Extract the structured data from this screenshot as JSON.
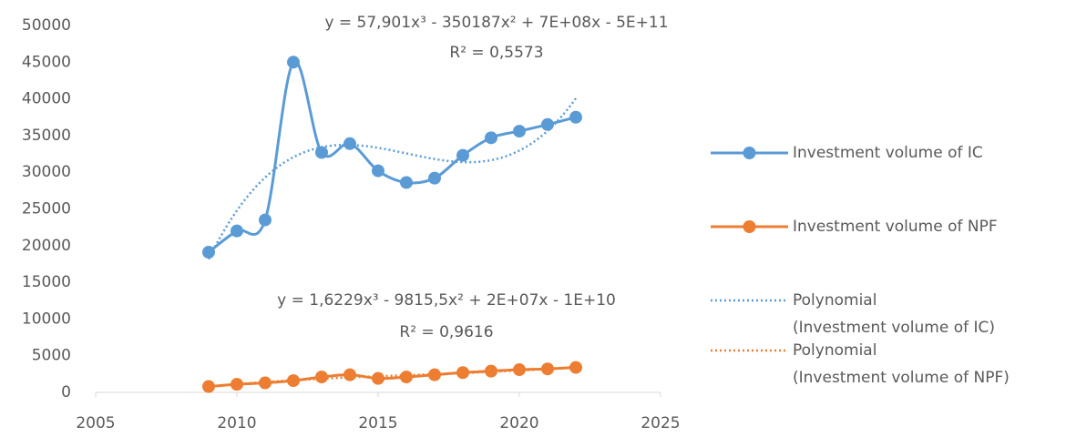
{
  "chart_data": {
    "type": "line",
    "x": [
      2009,
      2010,
      2011,
      2012,
      2013,
      2014,
      2015,
      2016,
      2017,
      2018,
      2019,
      2020,
      2021,
      2022
    ],
    "series": [
      {
        "name": "Investment volume of IC",
        "color": "#5b9bd5",
        "values": [
          19100,
          22000,
          23500,
          45000,
          32700,
          33900,
          30200,
          28600,
          29200,
          32300,
          34700,
          35600,
          36500,
          37500
        ]
      },
      {
        "name": "Investment volume of NPF",
        "color": "#ed7d31",
        "values": [
          800,
          1100,
          1300,
          1600,
          2100,
          2400,
          1900,
          2100,
          2400,
          2700,
          2900,
          3100,
          3200,
          3400
        ]
      }
    ],
    "trendlines": [
      {
        "name_lines": [
          "Polynomial",
          "(Investment volume of IC)"
        ],
        "series": 0,
        "degree": 3,
        "equation": "y = 57,901x³ - 350187x² + 7E+08x - 5E+11",
        "r2": "R² = 0,5573"
      },
      {
        "name_lines": [
          "Polynomial",
          "(Investment volume of NPF)"
        ],
        "series": 1,
        "degree": 3,
        "equation": "y = 1,6229x³ - 9815,5x² + 2E+07x - 1E+10",
        "r2": "R² = 0,9616"
      }
    ],
    "xlim": [
      2005,
      2025
    ],
    "xticks": [
      2005,
      2010,
      2015,
      2020,
      2025
    ],
    "ylim": [
      0,
      50000
    ],
    "yticks": [
      0,
      5000,
      10000,
      15000,
      20000,
      25000,
      30000,
      35000,
      40000,
      45000,
      50000
    ],
    "smooth": true,
    "legend": "right"
  }
}
